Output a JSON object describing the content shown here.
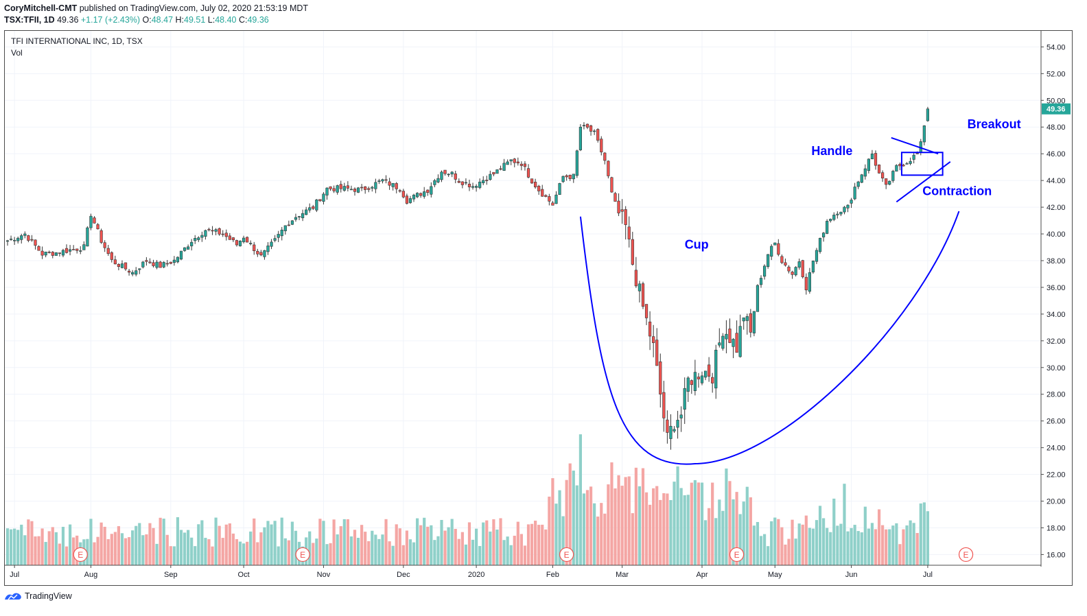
{
  "header": {
    "author": "CoryMitchell-CMT",
    "published": " published on TradingView.com, July 02, 2020 21:53:19 MDT",
    "symbol": "TSX:TFII, 1D",
    "last": "49.36",
    "change": "+1.17 (+2.43%)",
    "o_label": "O:",
    "o_value": "48.47",
    "h_label": "H:",
    "h_value": "49.51",
    "l_label": "L:",
    "l_value": "48.40",
    "c_label": "C:",
    "c_value": "49.36"
  },
  "legend": {
    "instrument": "TFI INTERNATIONAL INC, 1D, TSX",
    "volume_label": "Vol"
  },
  "footer": {
    "brand": "TradingView"
  },
  "colors": {
    "up": "#26a69a",
    "down": "#ef5350",
    "volume_up": "#8fd0c9",
    "volume_down": "#f4a6a4",
    "annotation": "#0000ff",
    "grid": "#f0f3fa",
    "price_badge": "#26a69a"
  },
  "annotations": {
    "cup": "Cup",
    "handle": "Handle",
    "contraction": "Contraction",
    "breakout": "Breakout"
  },
  "earnings_marker": "E",
  "chart_data": {
    "type": "candlestick",
    "title": "TFI INTERNATIONAL INC, 1D, TSX",
    "price_axis": {
      "ticks": [
        "54.00",
        "52.00",
        "50.00",
        "48.00",
        "46.00",
        "44.00",
        "42.00",
        "40.00",
        "38.00",
        "36.00",
        "34.00",
        "32.00",
        "30.00",
        "28.00",
        "26.00",
        "24.00",
        "22.00",
        "20.00",
        "18.00",
        "16.00"
      ],
      "ylim": [
        15.2,
        55.2
      ],
      "last_price_label": "49.36"
    },
    "time_axis": {
      "labels": [
        "Jul",
        "Aug",
        "Sep",
        "Oct",
        "Nov",
        "Dec",
        "2020",
        "Feb",
        "Mar",
        "Apr",
        "May",
        "Jun",
        "Jul"
      ],
      "label_bars": [
        2,
        24,
        47,
        68,
        91,
        114,
        135,
        157,
        177,
        200,
        221,
        243,
        265
      ]
    },
    "bars_total": 266,
    "price_path": [
      [
        0,
        39.5
      ],
      [
        5,
        40.0
      ],
      [
        10,
        38.5
      ],
      [
        14,
        38.6
      ],
      [
        22,
        39.0
      ],
      [
        24,
        41.5
      ],
      [
        27,
        39.5
      ],
      [
        30,
        38.0
      ],
      [
        36,
        37.1
      ],
      [
        40,
        38.0
      ],
      [
        44,
        37.6
      ],
      [
        48,
        38.0
      ],
      [
        53,
        39.5
      ],
      [
        57,
        40.3
      ],
      [
        62,
        40.0
      ],
      [
        66,
        39.2
      ],
      [
        68,
        39.8
      ],
      [
        73,
        38.3
      ],
      [
        77,
        39.5
      ],
      [
        80,
        40.6
      ],
      [
        83,
        41.3
      ],
      [
        88,
        42.0
      ],
      [
        92,
        43.4
      ],
      [
        97,
        43.4
      ],
      [
        102,
        43.3
      ],
      [
        108,
        44.0
      ],
      [
        113,
        43.4
      ],
      [
        115,
        42.5
      ],
      [
        118,
        42.9
      ],
      [
        121,
        43.3
      ],
      [
        125,
        44.7
      ],
      [
        128,
        44.5
      ],
      [
        130,
        44.0
      ],
      [
        134,
        43.6
      ],
      [
        140,
        44.5
      ],
      [
        145,
        45.5
      ],
      [
        148,
        45.3
      ],
      [
        151,
        44.0
      ],
      [
        153,
        43.3
      ],
      [
        157,
        42.2
      ],
      [
        160,
        44.3
      ],
      [
        163,
        44.3
      ],
      [
        165,
        48.0
      ],
      [
        167,
        47.9
      ],
      [
        169,
        47.5
      ],
      [
        172,
        45.5
      ],
      [
        174,
        43.0
      ],
      [
        176,
        41.5
      ],
      [
        178,
        40.5
      ],
      [
        180,
        37.8
      ],
      [
        183,
        34.5
      ],
      [
        186,
        31.5
      ],
      [
        188,
        28.0
      ],
      [
        190,
        24.6
      ],
      [
        192,
        26.0
      ],
      [
        194,
        26.5
      ],
      [
        196,
        29.0
      ],
      [
        200,
        29.8
      ],
      [
        203,
        29.5
      ],
      [
        206,
        33.0
      ],
      [
        208,
        32.3
      ],
      [
        210,
        31.5
      ],
      [
        212,
        34.0
      ],
      [
        214,
        32.5
      ],
      [
        216,
        36.0
      ],
      [
        219,
        38.5
      ],
      [
        221,
        39.3
      ],
      [
        223,
        38.0
      ],
      [
        226,
        37.0
      ],
      [
        228,
        38.0
      ],
      [
        230,
        36.0
      ],
      [
        232,
        38.0
      ],
      [
        234,
        39.5
      ],
      [
        236,
        41.0
      ],
      [
        239,
        41.7
      ],
      [
        242,
        42.0
      ],
      [
        244,
        43.5
      ],
      [
        247,
        45.0
      ],
      [
        249,
        46.0
      ],
      [
        251,
        44.5
      ],
      [
        253,
        43.5
      ],
      [
        256,
        45.0
      ],
      [
        259,
        45.4
      ],
      [
        262,
        46.0
      ],
      [
        263,
        46.7
      ],
      [
        264,
        48.2
      ],
      [
        265,
        49.36
      ]
    ],
    "volume_bars_high": [
      {
        "bar": 165,
        "value": 25.0
      },
      {
        "bar": 174,
        "value": 22.9
      },
      {
        "bar": 181,
        "value": 22.5
      },
      {
        "bar": 193,
        "value": 22.6
      },
      {
        "bar": 241,
        "value": 21.3
      }
    ],
    "earnings_bars": [
      21,
      85,
      161,
      210,
      276
    ],
    "annotations": [
      {
        "type": "cup-curve",
        "label": "Cup"
      },
      {
        "type": "handle-rectangle",
        "label": "Handle"
      },
      {
        "type": "converging-trendlines",
        "label": "Contraction"
      },
      {
        "type": "text",
        "label": "Breakout"
      }
    ]
  }
}
